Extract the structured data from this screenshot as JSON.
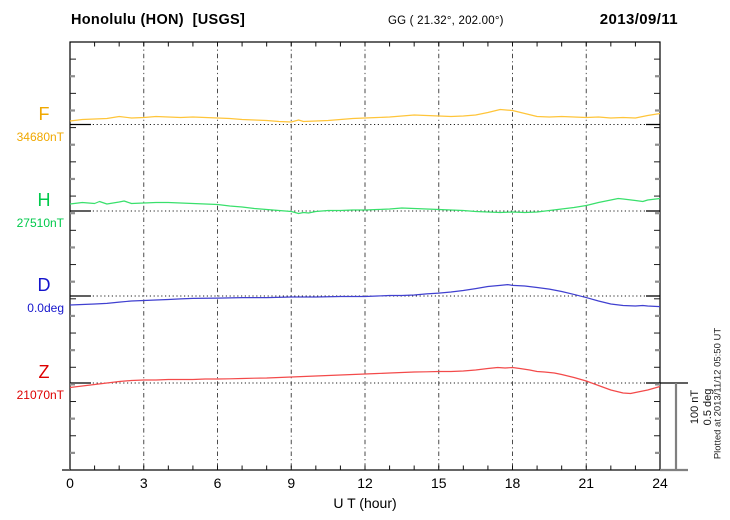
{
  "header": {
    "station": "Honolulu (HON)  [USGS]",
    "coords": "GG ( 21.32°, 202.00°)",
    "date": "2013/09/11"
  },
  "axes": {
    "x_label": "U T (hour)",
    "x_tick_labels": [
      "0",
      "3",
      "6",
      "9",
      "12",
      "15",
      "18",
      "21",
      "24"
    ]
  },
  "scalebar": {
    "line1": "100 nT",
    "line2": "0.5 deg"
  },
  "footer_note": "Plotted at 2013/11/12 05:50 UT",
  "channels": [
    {
      "id": "F",
      "label": "F",
      "ref_label": "34680nT",
      "ref_value": 34680,
      "unit": "nT",
      "label_color": "#F0A800",
      "curve_color": "#FFC53A"
    },
    {
      "id": "H",
      "label": "H",
      "ref_label": "27510nT",
      "ref_value": 27510,
      "unit": "nT",
      "label_color": "#00C94B",
      "curve_color": "#39E06C"
    },
    {
      "id": "D",
      "label": "D",
      "ref_label": "0.0deg",
      "ref_value": 0.0,
      "unit": "deg",
      "label_color": "#1414CC",
      "curve_color": "#4040D0"
    },
    {
      "id": "Z",
      "label": "Z",
      "ref_label": "21070nT",
      "ref_value": 21070,
      "unit": "nT",
      "label_color": "#DD0000",
      "curve_color": "#F34A4A"
    }
  ],
  "chart_data": {
    "type": "line",
    "title": "Honolulu (HON) [USGS] magnetogram 2013/09/11",
    "xlabel": "U T (hour)",
    "x_range": [
      0,
      24
    ],
    "x_ticks": [
      0,
      3,
      6,
      9,
      12,
      15,
      18,
      21,
      24
    ],
    "grid": "vertical dash-dot every 3 hours; dotted horizontal baseline per channel",
    "scale_per_division": {
      "nT": 100,
      "deg": 0.5
    },
    "series": [
      {
        "name": "F",
        "unit": "nT",
        "baseline": 34680,
        "x": [
          0,
          0.5,
          1,
          1.5,
          2,
          2.5,
          3,
          3.5,
          4,
          4.5,
          5,
          5.5,
          6,
          6.5,
          7,
          7.5,
          8,
          8.5,
          9,
          9.3,
          9.5,
          10,
          10.5,
          11,
          11.5,
          12,
          12.5,
          13,
          13.5,
          14,
          14.5,
          15,
          15.5,
          16,
          16.5,
          17,
          17.5,
          18,
          18.5,
          19,
          19.5,
          20,
          20.5,
          21,
          21.5,
          22,
          22.5,
          23,
          23.5,
          24
        ],
        "values": [
          34684.0,
          34685.8,
          34686.4,
          34686.9,
          34689.2,
          34687.5,
          34688.1,
          34689.2,
          34688.7,
          34688.1,
          34688.7,
          34688.1,
          34687.5,
          34686.9,
          34685.8,
          34685.2,
          34684.6,
          34683.5,
          34682.9,
          34685.2,
          34683.5,
          34684.0,
          34684.6,
          34685.8,
          34686.9,
          34687.5,
          34688.1,
          34688.7,
          34689.8,
          34691.0,
          34690.4,
          34689.8,
          34689.2,
          34689.8,
          34691.0,
          34693.9,
          34697.3,
          34696.2,
          34692.7,
          34689.2,
          34688.7,
          34689.2,
          34688.7,
          34688.1,
          34688.7,
          34687.5,
          34688.1,
          34687.5,
          34690.4,
          34692.7
        ]
      },
      {
        "name": "H",
        "unit": "nT",
        "baseline": 27510,
        "x": [
          0,
          0.5,
          1,
          1.2,
          1.5,
          2,
          2.2,
          2.5,
          3,
          3.5,
          4,
          4.5,
          5,
          5.5,
          6,
          6.5,
          7,
          7.5,
          8,
          8.5,
          9,
          9.3,
          9.5,
          9.7,
          10,
          10.5,
          11,
          11.5,
          12,
          12.5,
          13,
          13.5,
          14,
          14.5,
          15,
          15.5,
          16,
          16.5,
          17,
          17.5,
          18,
          18.5,
          19,
          19.5,
          20,
          20.5,
          21,
          21.5,
          22,
          22.3,
          22.5,
          23,
          23.3,
          23.5,
          24
        ],
        "values": [
          27518.1,
          27519.8,
          27518.7,
          27521.0,
          27518.1,
          27520.4,
          27521.6,
          27518.7,
          27519.2,
          27519.8,
          27519.8,
          27519.2,
          27518.7,
          27518.1,
          27517.5,
          27515.8,
          27514.6,
          27512.9,
          27511.7,
          27510.6,
          27509.4,
          27507.1,
          27508.3,
          27507.7,
          27509.4,
          27510.6,
          27510.6,
          27511.2,
          27511.2,
          27511.7,
          27512.3,
          27513.5,
          27512.9,
          27512.3,
          27511.7,
          27511.2,
          27510.6,
          27509.4,
          27508.8,
          27508.3,
          27508.8,
          27508.3,
          27508.8,
          27510.6,
          27512.3,
          27514.0,
          27516.4,
          27519.8,
          27522.7,
          27524.5,
          27523.9,
          27522.1,
          27521.0,
          27522.7,
          27524.5
        ]
      },
      {
        "name": "D",
        "unit": "deg",
        "baseline": 0.0,
        "x": [
          0,
          0.5,
          1,
          1.5,
          2,
          2.5,
          3,
          3.5,
          4,
          4.5,
          5,
          6,
          7,
          8,
          9,
          10,
          11,
          12,
          12.5,
          13,
          13.5,
          14,
          14.5,
          15,
          15.5,
          16,
          16.5,
          17,
          17.5,
          17.8,
          18,
          18.5,
          19,
          19.5,
          20,
          20.5,
          21,
          21.5,
          22,
          22.5,
          23,
          23.3,
          23.5,
          24
        ],
        "values": [
          -0.052,
          -0.049,
          -0.046,
          -0.043,
          -0.035,
          -0.029,
          -0.026,
          -0.023,
          -0.02,
          -0.017,
          -0.014,
          -0.012,
          -0.009,
          -0.009,
          -0.006,
          -0.006,
          -0.003,
          -0.003,
          0.0,
          0.003,
          0.003,
          0.006,
          0.012,
          0.017,
          0.023,
          0.032,
          0.043,
          0.055,
          0.061,
          0.066,
          0.061,
          0.058,
          0.049,
          0.04,
          0.026,
          0.009,
          -0.009,
          -0.029,
          -0.046,
          -0.055,
          -0.058,
          -0.055,
          -0.058,
          -0.061
        ]
      },
      {
        "name": "Z",
        "unit": "nT",
        "baseline": 21070,
        "x": [
          0,
          0.5,
          1,
          1.5,
          2,
          2.5,
          3,
          3.5,
          4,
          4.5,
          5,
          5.5,
          6,
          6.5,
          7,
          7.5,
          8,
          8.5,
          9,
          9.5,
          10,
          10.5,
          11,
          11.5,
          12,
          12.5,
          13,
          13.5,
          14,
          14.5,
          15,
          15.5,
          16,
          16.5,
          17,
          17.4,
          17.7,
          18,
          18.3,
          18.7,
          19,
          19.3,
          19.7,
          20,
          20.5,
          21,
          21.5,
          22,
          22.5,
          22.8,
          23,
          23.5,
          24
        ],
        "values": [
          21064.8,
          21066.5,
          21068.3,
          21070.0,
          21071.7,
          21072.9,
          21073.5,
          21073.5,
          21074.0,
          21074.0,
          21074.0,
          21074.6,
          21074.6,
          21074.9,
          21075.2,
          21075.5,
          21075.8,
          21076.4,
          21076.9,
          21077.5,
          21078.1,
          21078.7,
          21079.2,
          21079.8,
          21080.4,
          21081.0,
          21081.6,
          21082.1,
          21082.7,
          21083.0,
          21083.3,
          21083.3,
          21083.9,
          21085.0,
          21086.8,
          21087.9,
          21087.3,
          21087.9,
          21086.8,
          21085.0,
          21083.3,
          21082.7,
          21081.6,
          21079.8,
          21076.4,
          21072.3,
          21067.1,
          21061.9,
          21058.4,
          21057.9,
          21059.0,
          21061.9,
          21066.0
        ]
      }
    ]
  }
}
